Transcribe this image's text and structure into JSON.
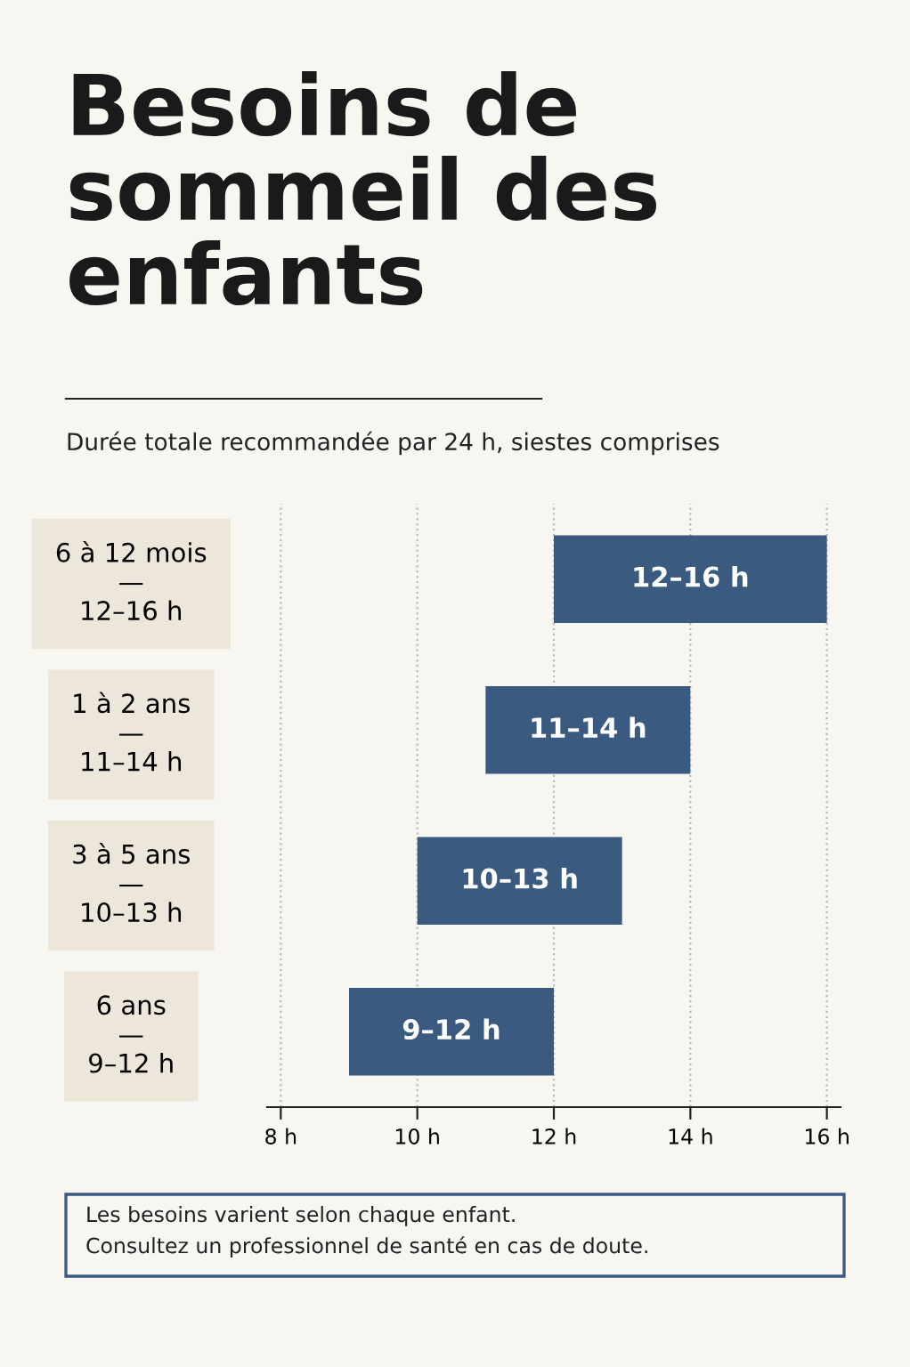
{
  "chart_data": {
    "type": "bar",
    "orientation": "horizontal",
    "title": "Besoins de\nsommeil des\nenfants",
    "subtitle": "Durée totale recommandée par 24 h, siestes comprises",
    "categories": [
      "6 à 12 mois\n—\n12–16 h",
      "1 à 2 ans\n—\n11–14 h",
      "3 à 5 ans\n—\n10–13 h",
      "6 ans\n—\n9–12 h"
    ],
    "base": [
      12,
      11,
      10,
      9
    ],
    "values": [
      4,
      3,
      3,
      3
    ],
    "color": "#3b5a80",
    "value_labels": [
      "12–16 h",
      "11–14 h",
      "10–13 h",
      "9–12 h"
    ],
    "xlim": [
      7.8,
      16.2
    ],
    "xticks": [
      {
        "value": 8,
        "label": "8 h"
      },
      {
        "value": 10,
        "label": "10 h"
      },
      {
        "value": 12,
        "label": "12 h"
      },
      {
        "value": 14,
        "label": "14 h"
      },
      {
        "value": 16,
        "label": "16 h"
      }
    ],
    "grid": "x",
    "legend": false,
    "annotations": [
      "Les besoins varient selon chaque enfant.\nConsultez un professionnel de santé en cas de doute."
    ]
  }
}
